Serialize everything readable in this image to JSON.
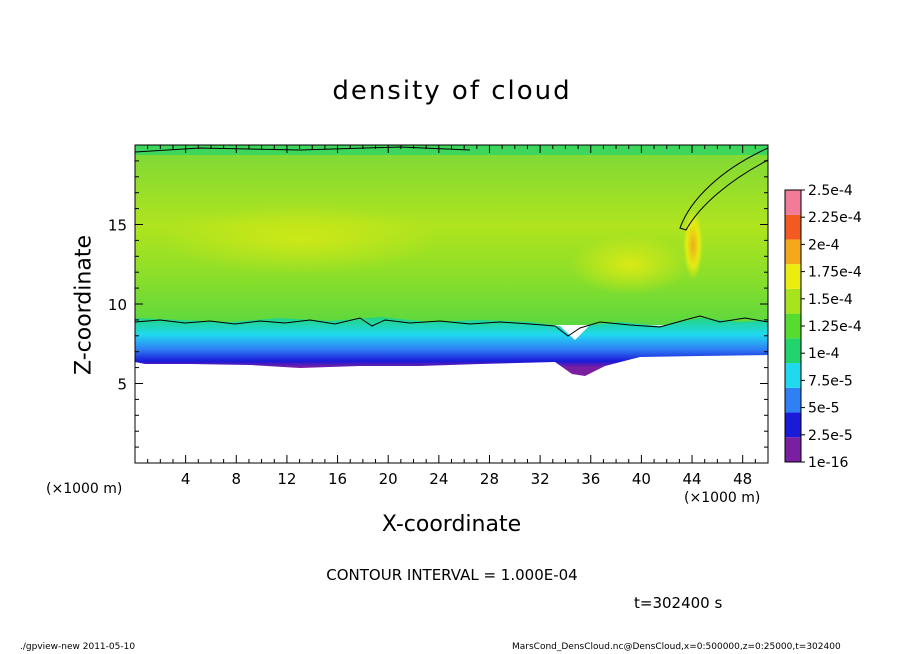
{
  "chart_data": {
    "type": "heatmap",
    "title": "density of cloud",
    "xlabel": "X-coordinate",
    "ylabel": "Z-coordinate",
    "x_unit": "(×1000 m)",
    "xlim": [
      0,
      50
    ],
    "ylim": [
      0,
      20
    ],
    "x_ticks": [
      4,
      8,
      12,
      16,
      20,
      24,
      28,
      32,
      36,
      40,
      44,
      48
    ],
    "y_ticks": [
      5,
      10,
      15
    ],
    "colorbar": {
      "labels": [
        "1e-16",
        "2.5e-5",
        "5e-5",
        "7.5e-5",
        "1e-4",
        "1.25e-4",
        "1.5e-4",
        "1.75e-4",
        "2e-4",
        "2.25e-4",
        "2.5e-4"
      ],
      "colors": [
        "#7b1fa2",
        "#1a1ad8",
        "#2f7ff5",
        "#20d8f0",
        "#22d46c",
        "#55dc2e",
        "#a8e41e",
        "#ecec10",
        "#f5a81a",
        "#f25a22",
        "#f07c9a"
      ]
    },
    "contour_interval": "CONTOUR INTERVAL = 1.000E-04",
    "time": "t=302400 s",
    "field_summary": {
      "cloud_base_z": 6.5,
      "cloud_top_z": 20,
      "contour_level": 0.0001,
      "contour_z_approx": 8.9,
      "typical_interior_density": 0.00014,
      "max_density_region_x": 44.5,
      "max_density_region_z": 14
    }
  },
  "footer": {
    "left": "./gpview-new  2011-05-10",
    "right": "MarsCond_DensCloud.nc@DensCloud,x=0:500000,z=0:25000,t=302400"
  }
}
